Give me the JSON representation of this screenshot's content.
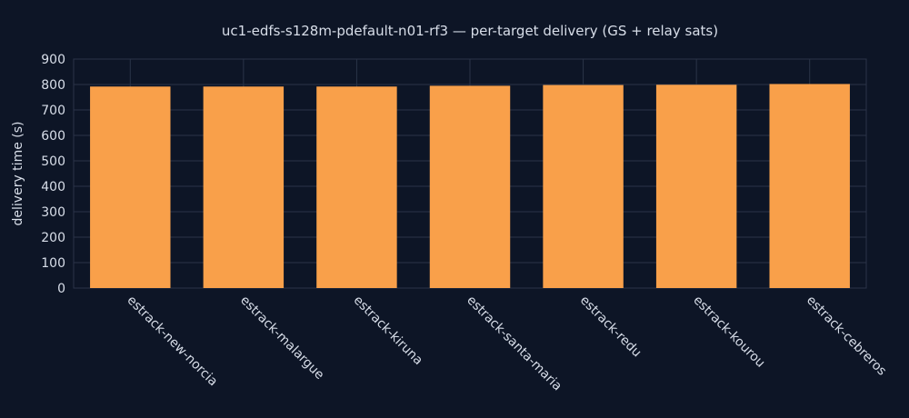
{
  "chart_data": {
    "type": "bar",
    "title": "uc1-edfs-s128m-pdefault-n01-rf3 — per-target delivery (GS + relay sats)",
    "xlabel": "",
    "ylabel": "delivery time (s)",
    "categories": [
      "estrack-new-norcia",
      "estrack-malargue",
      "estrack-kiruna",
      "estrack-santa-maria",
      "estrack-redu",
      "estrack-kourou",
      "estrack-cebreros"
    ],
    "values": [
      792,
      792,
      792,
      795,
      798,
      799,
      802
    ],
    "ylim": [
      0,
      900
    ],
    "yticks": [
      0,
      100,
      200,
      300,
      400,
      500,
      600,
      700,
      800,
      900
    ],
    "grid": true,
    "bar_color": "#f9a04a",
    "background_color": "#0d1526",
    "grid_color": "#2a3448",
    "text_color": "#d8dee9"
  }
}
